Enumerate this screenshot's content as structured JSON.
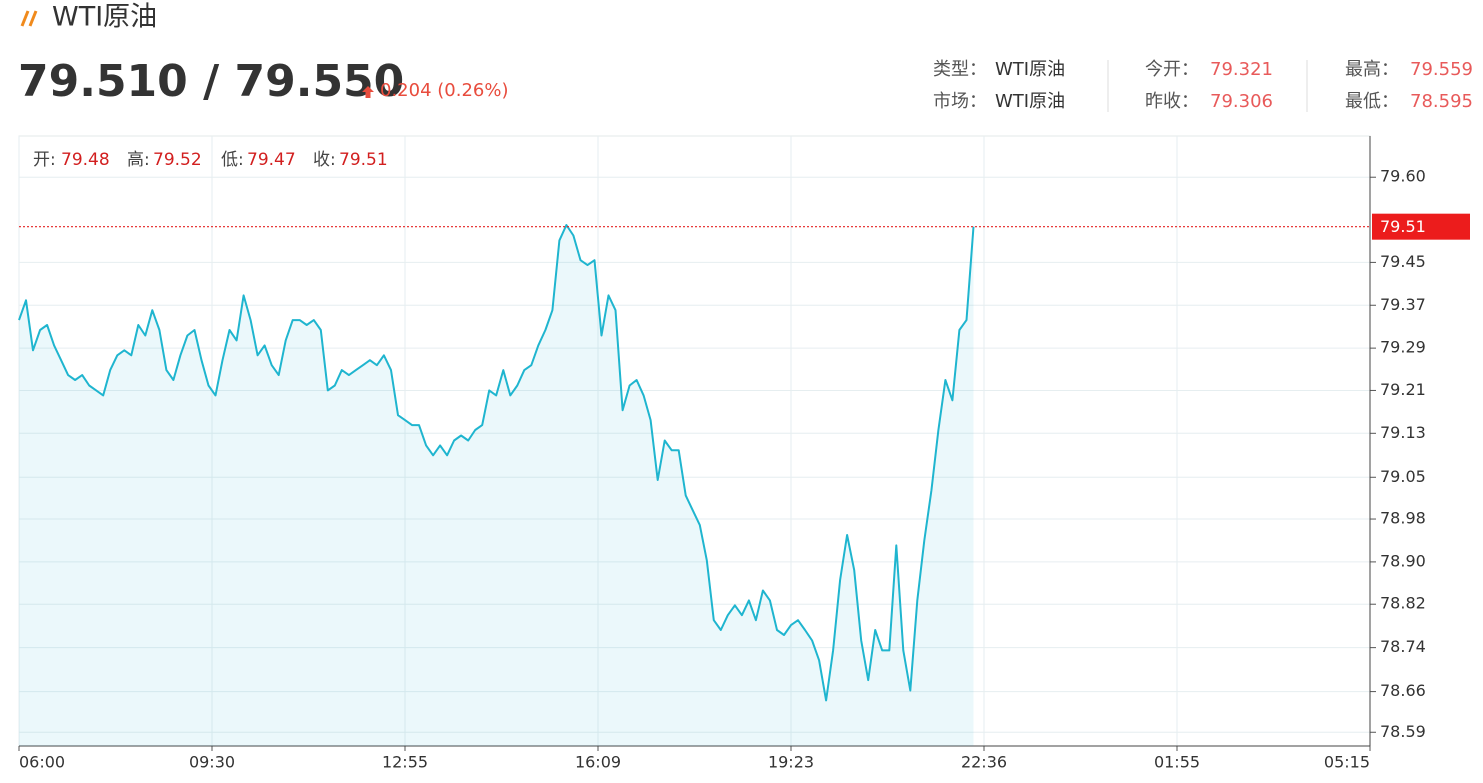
{
  "header": {
    "title": "WTI原油",
    "price": "79.510 / 79.550",
    "change": "0.204 (0.26%)",
    "info": [
      {
        "label": "类型：",
        "value": "WTI原油"
      },
      {
        "label": "今开：",
        "value": "79.321"
      },
      {
        "label": "最高：",
        "value": "79.559"
      },
      {
        "label": "市场：",
        "value": "WTI原油"
      },
      {
        "label": "昨收：",
        "value": "79.306"
      },
      {
        "label": "最低：",
        "value": "78.595"
      }
    ]
  },
  "ohlc": [
    {
      "label": "开:",
      "value": "79.48"
    },
    {
      "label": "高:",
      "value": "79.52"
    },
    {
      "label": "低:",
      "value": "79.47"
    },
    {
      "label": "收:",
      "value": "79.51"
    }
  ],
  "chart_data": {
    "type": "line",
    "series": [
      {
        "color": "#1fb5cf",
        "values": [
          79.34,
          79.376,
          79.285,
          79.322,
          79.331,
          79.294,
          79.267,
          79.24,
          79.231,
          79.24,
          79.221,
          79.212,
          79.203,
          79.249,
          79.276,
          79.285,
          79.276,
          79.331,
          79.312,
          79.358,
          79.322,
          79.249,
          79.231,
          79.276,
          79.312,
          79.322,
          79.267,
          79.221,
          79.203,
          79.267,
          79.322,
          79.303,
          79.385,
          79.34,
          79.276,
          79.294,
          79.258,
          79.24,
          79.303,
          79.34,
          79.34,
          79.331,
          79.34,
          79.322,
          79.212,
          79.221,
          79.249,
          79.24,
          79.249,
          79.258,
          79.267,
          79.258,
          79.276,
          79.249,
          79.167,
          79.158,
          79.149,
          79.149,
          79.112,
          79.094,
          79.112,
          79.094,
          79.121,
          79.13,
          79.121,
          79.14,
          79.149,
          79.212,
          79.203,
          79.249,
          79.203,
          79.221,
          79.249,
          79.258,
          79.294,
          79.322,
          79.358,
          79.485,
          79.513,
          79.494,
          79.449,
          79.44,
          79.449,
          79.312,
          79.385,
          79.358,
          79.176,
          79.221,
          79.231,
          79.203,
          79.158,
          79.049,
          79.121,
          79.103,
          79.103,
          79.021,
          78.994,
          78.967,
          78.903,
          78.794,
          78.776,
          78.803,
          78.821,
          78.803,
          78.83,
          78.794,
          78.848,
          78.83,
          78.776,
          78.767,
          78.785,
          78.794,
          78.776,
          78.757,
          78.721,
          78.648,
          78.739,
          78.867,
          78.949,
          78.885,
          78.757,
          78.685,
          78.776,
          78.739,
          78.739,
          78.93,
          78.739,
          78.666,
          78.83,
          78.939,
          79.03,
          79.14,
          79.231,
          79.194,
          79.322,
          79.34,
          79.51
        ]
      }
    ],
    "xlim": [
      0,
      192.5
    ],
    "xticks": [
      {
        "value": 0,
        "label": "06:00"
      },
      {
        "value": 27.5,
        "label": "09:30"
      },
      {
        "value": 55,
        "label": "12:55"
      },
      {
        "value": 82.5,
        "label": "16:09"
      },
      {
        "value": 110,
        "label": "19:23"
      },
      {
        "value": 137.5,
        "label": "22:36"
      },
      {
        "value": 165,
        "label": "01:55"
      },
      {
        "value": 192.5,
        "label": "05:15"
      }
    ],
    "ylim": [
      78.565,
      79.675
    ],
    "yticks": [
      {
        "value": 79.6,
        "label": "79.60"
      },
      {
        "value": 79.445,
        "label": "79.45"
      },
      {
        "value": 79.367,
        "label": "79.37"
      },
      {
        "value": 79.289,
        "label": "79.29"
      },
      {
        "value": 79.212,
        "label": "79.21"
      },
      {
        "value": 79.134,
        "label": "79.13"
      },
      {
        "value": 79.054,
        "label": "79.05"
      },
      {
        "value": 78.978,
        "label": "78.98"
      },
      {
        "value": 78.9,
        "label": "78.90"
      },
      {
        "value": 78.823,
        "label": "78.82"
      },
      {
        "value": 78.744,
        "label": "78.74"
      },
      {
        "value": 78.664,
        "label": "78.66"
      },
      {
        "value": 78.59,
        "label": "78.59"
      }
    ],
    "current_price": 79.51,
    "grid": true
  }
}
